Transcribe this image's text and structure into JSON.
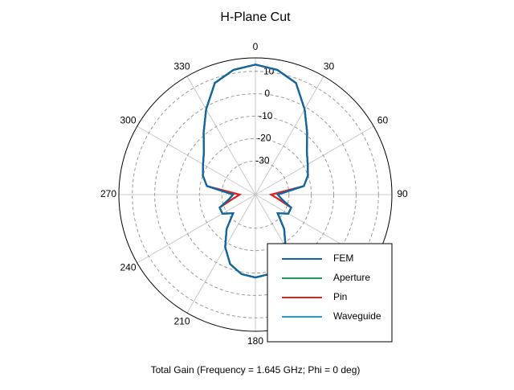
{
  "chart_data": {
    "type": "polar",
    "title": "H-Plane Cut",
    "xlabel": "Total Gain (Frequency = 1.645 GHz; Phi = 0 deg)",
    "x": [
      0,
      10,
      20,
      30,
      40,
      50,
      60,
      70,
      80,
      90,
      100,
      110,
      120,
      130,
      140,
      150,
      160,
      170,
      180,
      190,
      200,
      210,
      220,
      230,
      240,
      250,
      260,
      270,
      280,
      290,
      300,
      310,
      320,
      330,
      340,
      350
    ],
    "series": [
      {
        "name": "Aperture",
        "color": "#12a05a",
        "values": [
          13,
          11.5,
          8,
          -1,
          -9,
          -15,
          -18,
          -20,
          -23,
          -35,
          -33,
          -28,
          -28,
          -32,
          -25,
          -18,
          -12,
          -9,
          -8,
          -9,
          -12,
          -18,
          -25,
          -32,
          -28,
          -28,
          -33,
          -35,
          -23,
          -20,
          -18,
          -15,
          -9,
          -1,
          8,
          11.5
        ]
      },
      {
        "name": "Pin",
        "color": "#e0201c",
        "values": [
          13,
          11.5,
          8,
          -1,
          -9,
          -15,
          -18,
          -20,
          -23,
          -38,
          -35,
          -28,
          -28,
          -32,
          -25,
          -18,
          -12,
          -9,
          -8,
          -9,
          -12,
          -18,
          -25,
          -32,
          -28,
          -28,
          -35,
          -38,
          -23,
          -20,
          -18,
          -15,
          -9,
          -1,
          8,
          11.5
        ]
      },
      {
        "name": "Waveguide",
        "color": "#1a9fd8",
        "values": [
          13,
          11.5,
          8,
          -1,
          -9,
          -15,
          -18,
          -20,
          -23,
          -35,
          -33,
          -28,
          -28,
          -32,
          -25,
          -18,
          -12,
          -9,
          -8,
          -9,
          -12,
          -18,
          -25,
          -32,
          -28,
          -28,
          -33,
          -35,
          -23,
          -20,
          -18,
          -15,
          -9,
          -1,
          8,
          11.5
        ]
      },
      {
        "name": "FEM",
        "color": "#0f65a0",
        "values": [
          13,
          11.5,
          8,
          -1,
          -9,
          -15,
          -18,
          -20,
          -23,
          -35,
          -33,
          -28,
          -28,
          -32,
          -25,
          -18,
          -12,
          -9,
          -8,
          -9,
          -12,
          -18,
          -25,
          -32,
          -28,
          -28,
          -33,
          -35,
          -23,
          -20,
          -18,
          -15,
          -9,
          -1,
          8,
          11.5
        ]
      }
    ],
    "legend_order": [
      "FEM",
      "Aperture",
      "Pin",
      "Waveguide"
    ],
    "ylim": [
      -45,
      16
    ],
    "yticks": [
      -30,
      -20,
      -10,
      0,
      10
    ],
    "xticks": [
      0,
      30,
      60,
      90,
      120,
      150,
      180,
      210,
      240,
      270,
      300,
      330
    ],
    "grid": true,
    "legend": "lower right"
  }
}
